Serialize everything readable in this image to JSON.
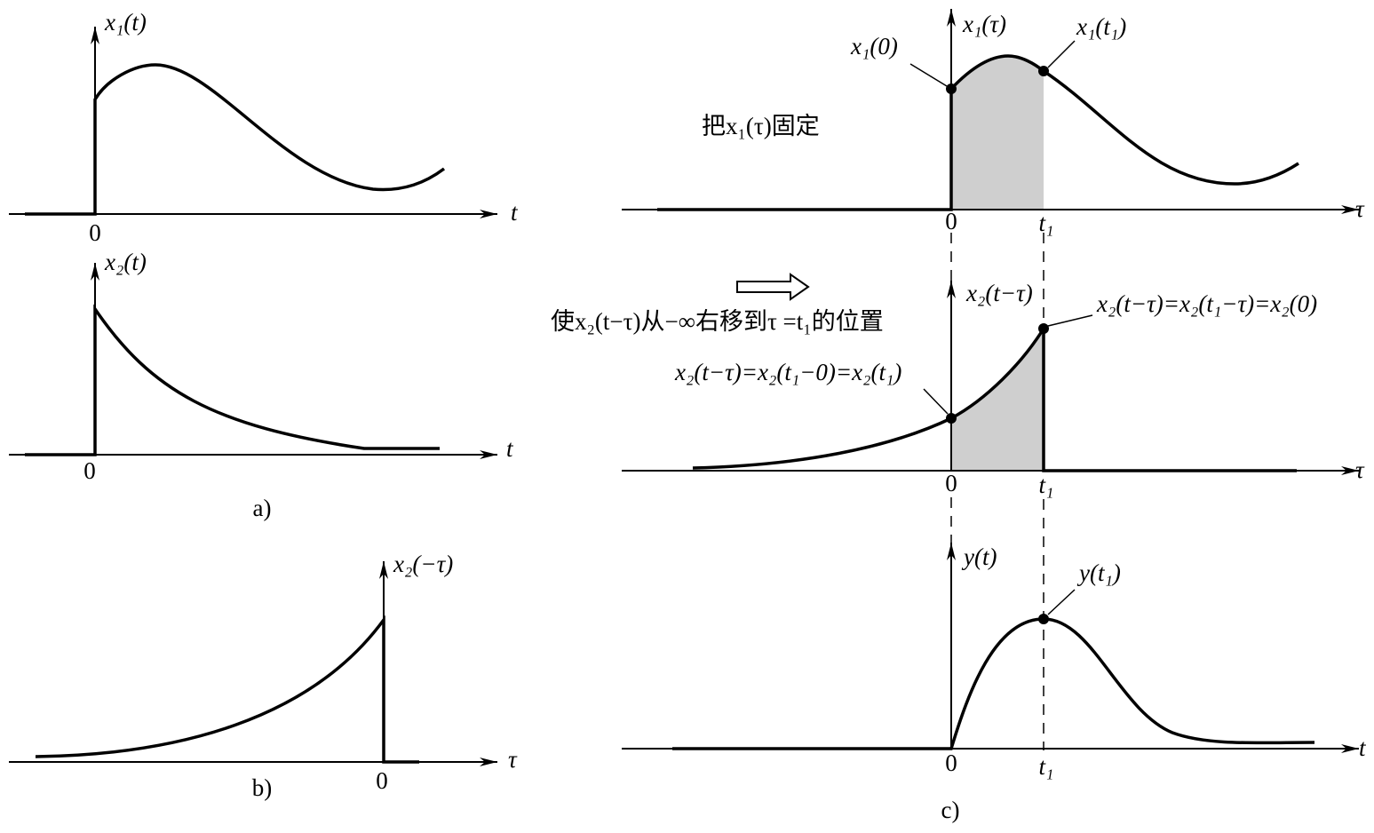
{
  "panel_a": {
    "top": {
      "ylabel": "x₁(t)",
      "origin": "0",
      "xlabel": "t"
    },
    "bottom": {
      "ylabel": "x₂(t)",
      "origin": "0",
      "xlabel": "t"
    },
    "caption": "a)"
  },
  "panel_b": {
    "ylabel": "x₂(−τ)",
    "origin": "0",
    "xlabel": "τ",
    "caption": "b)"
  },
  "panel_c": {
    "top": {
      "ylabel": "x₁(τ)",
      "point_start": "x₁(0)",
      "point_end": "x₁(t₁)",
      "note": "把x₁(τ)固定",
      "origin": "0",
      "tick": "t₁",
      "xlabel": "τ"
    },
    "middle": {
      "ylabel": "x₂(t−τ)",
      "note": "使x₂(t−τ)从−∞右移到τ =t₁的位置",
      "point_end": "x₂(t−τ)=x₂(t₁−τ)=x₂(0)",
      "point_start": "x₂(t−τ)=x₂(t₁−0)=x₂(t₁)",
      "origin": "0",
      "tick": "t₁",
      "xlabel": "τ"
    },
    "bottom": {
      "ylabel": "y(t)",
      "point": "y(t₁)",
      "origin": "0",
      "tick": "t₁",
      "xlabel": "t"
    },
    "caption": "c)"
  }
}
